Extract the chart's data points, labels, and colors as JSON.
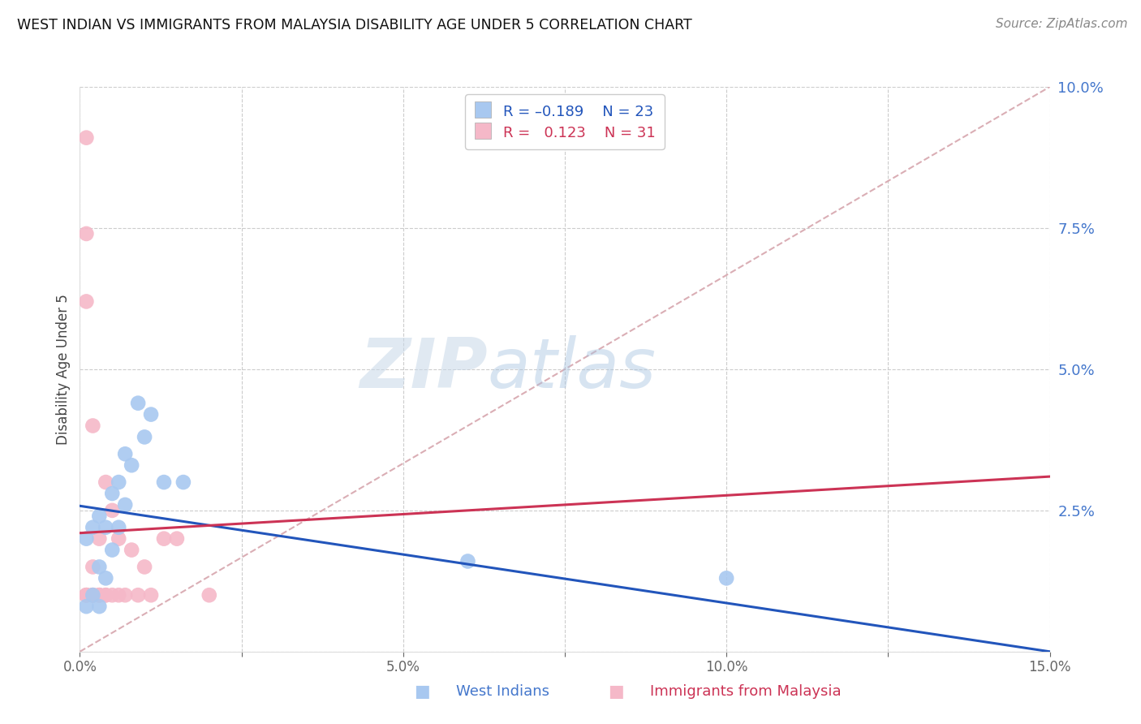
{
  "title": "WEST INDIAN VS IMMIGRANTS FROM MALAYSIA DISABILITY AGE UNDER 5 CORRELATION CHART",
  "source": "Source: ZipAtlas.com",
  "ylabel": "Disability Age Under 5",
  "xlim": [
    0,
    0.15
  ],
  "ylim": [
    0,
    0.1
  ],
  "xtick_positions": [
    0.0,
    0.025,
    0.05,
    0.075,
    0.1,
    0.125,
    0.15
  ],
  "xtick_labels": [
    "0.0%",
    "",
    "",
    "",
    "",
    "",
    "15.0%"
  ],
  "ytick_positions": [
    0.0,
    0.025,
    0.05,
    0.075,
    0.1
  ],
  "ytick_labels_right": [
    "",
    "2.5%",
    "5.0%",
    "7.5%",
    "10.0%"
  ],
  "blue_color": "#a8c8f0",
  "pink_color": "#f5b8c8",
  "blue_line_color": "#2255bb",
  "pink_line_color": "#cc3355",
  "diag_line_color": "#d4a0a8",
  "watermark_zip": "ZIP",
  "watermark_atlas": "atlas",
  "west_indian_x": [
    0.001,
    0.001,
    0.002,
    0.002,
    0.003,
    0.003,
    0.003,
    0.004,
    0.004,
    0.005,
    0.005,
    0.006,
    0.006,
    0.007,
    0.007,
    0.008,
    0.009,
    0.01,
    0.011,
    0.013,
    0.016,
    0.06,
    0.1
  ],
  "west_indian_y": [
    0.008,
    0.02,
    0.01,
    0.022,
    0.008,
    0.015,
    0.024,
    0.013,
    0.022,
    0.018,
    0.028,
    0.022,
    0.03,
    0.026,
    0.035,
    0.033,
    0.044,
    0.038,
    0.042,
    0.03,
    0.03,
    0.016,
    0.013
  ],
  "malaysia_x": [
    0.001,
    0.001,
    0.001,
    0.001,
    0.001,
    0.001,
    0.001,
    0.002,
    0.002,
    0.002,
    0.002,
    0.002,
    0.003,
    0.003,
    0.003,
    0.003,
    0.004,
    0.004,
    0.004,
    0.005,
    0.005,
    0.006,
    0.006,
    0.007,
    0.008,
    0.009,
    0.01,
    0.011,
    0.013,
    0.015,
    0.02
  ],
  "malaysia_y": [
    0.091,
    0.074,
    0.062,
    0.01,
    0.01,
    0.01,
    0.01,
    0.04,
    0.015,
    0.01,
    0.01,
    0.01,
    0.02,
    0.01,
    0.01,
    0.01,
    0.03,
    0.01,
    0.01,
    0.025,
    0.01,
    0.02,
    0.01,
    0.01,
    0.018,
    0.01,
    0.015,
    0.01,
    0.02,
    0.02,
    0.01
  ],
  "blue_trend_start_y": 0.0258,
  "blue_trend_end_y": 0.0,
  "pink_trend_start_y": 0.021,
  "pink_trend_end_y": 0.031
}
